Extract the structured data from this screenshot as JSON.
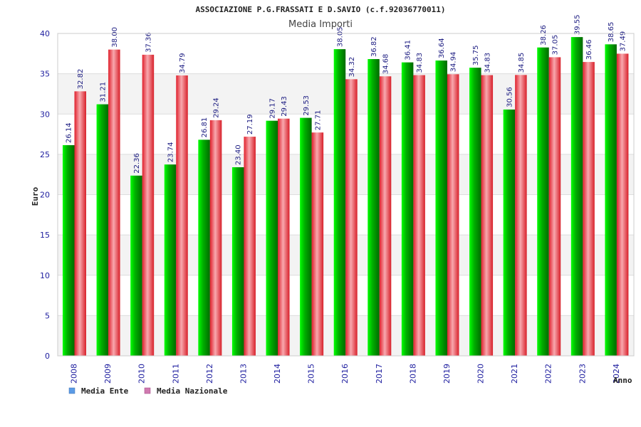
{
  "chart_data": {
    "type": "bar",
    "title": "ASSOCIAZIONE P.G.FRASSATI E D.SAVIO (c.f.92036770011)",
    "subtitle": "Media Importi",
    "xlabel": "Anno",
    "ylabel": "Euro",
    "ylim": [
      0,
      40
    ],
    "yticks": [
      0,
      5,
      10,
      15,
      20,
      25,
      30,
      35,
      40
    ],
    "grid": true,
    "legend_position": "bottom-left",
    "categories": [
      "2008",
      "2009",
      "2010",
      "2011",
      "2012",
      "2013",
      "2014",
      "2015",
      "2016",
      "2017",
      "2018",
      "2019",
      "2020",
      "2021",
      "2022",
      "2023",
      "2024"
    ],
    "series": [
      {
        "name": "Media Ente",
        "color": "#00b000",
        "legend_color": "#5b9be6",
        "values": [
          26.14,
          31.21,
          22.36,
          23.74,
          26.81,
          23.4,
          29.17,
          29.53,
          38.05,
          36.82,
          36.41,
          36.64,
          35.75,
          30.56,
          38.26,
          39.55,
          38.65
        ],
        "labels": [
          "26.14",
          "31.21",
          "22.36",
          "23.74",
          "26.81",
          "23.40",
          "29.17",
          "29.53",
          "38.05",
          "36.82",
          "36.41",
          "36.64",
          "35.75",
          "30.56",
          "38.26",
          "39.55",
          "38.65"
        ]
      },
      {
        "name": "Media Nazionale",
        "color": "#e8303a",
        "legend_color": "#d07ab0",
        "values": [
          32.82,
          38.0,
          37.36,
          34.79,
          29.24,
          27.19,
          29.43,
          27.71,
          34.32,
          34.68,
          34.83,
          34.94,
          34.83,
          34.85,
          37.05,
          36.46,
          37.49
        ],
        "labels": [
          "32.82",
          "38.00",
          "37.36",
          "34.79",
          "29.24",
          "27.19",
          "29.43",
          "27.71",
          "34.32",
          "34.68",
          "34.83",
          "34.94",
          "34.83",
          "34.85",
          "37.05",
          "36.46",
          "37.49"
        ]
      }
    ]
  }
}
